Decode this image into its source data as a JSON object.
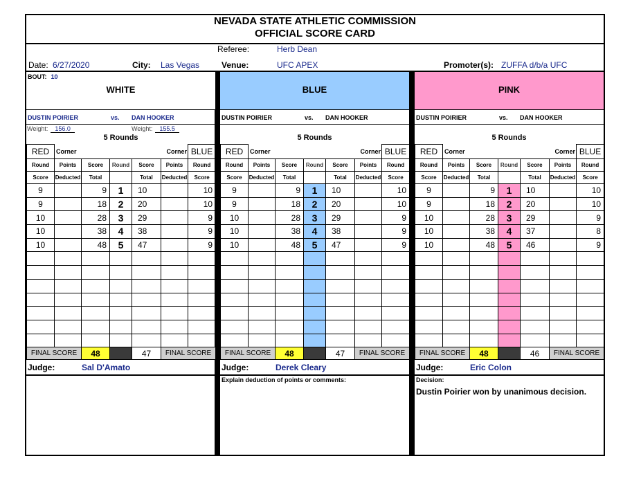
{
  "header": {
    "line1": "NEVADA STATE ATHLETIC COMMISSION",
    "line2": "OFFICIAL SCORE CARD"
  },
  "event": {
    "referee_label": "Referee:",
    "referee": "Herb Dean",
    "date_label": "Date:",
    "date": "6/27/2020",
    "city_label": "City:",
    "city": "Las Vegas",
    "venue_label": "Venue:",
    "venue": "UFC APEX",
    "promoter_label": "Promoter(s):",
    "promoter": "ZUFFA d/b/a UFC"
  },
  "bout": {
    "label": "BOUT:",
    "number": "10"
  },
  "labels": {
    "vs": "vs.",
    "weight": "Weight:",
    "rounds": "5 Rounds",
    "red": "RED",
    "blue": "BLUE",
    "corner": "Corner",
    "round": "Round",
    "score": "Score",
    "points": "Points",
    "deducted": "Deducted",
    "total": "Total",
    "final_score": "FINAL SCORE",
    "judge": "Judge:"
  },
  "fighters": {
    "red": "DUSTIN POIRIER",
    "blue": "DAN HOOKER",
    "red_weight": "156.0",
    "blue_weight": "155.5"
  },
  "colors": {
    "white": "#ffffff",
    "blue": "#99ccff",
    "pink": "#ff99cc",
    "final_highlight": "#ffff33",
    "name_text": "#1a2a8c"
  },
  "panels": [
    {
      "color_name": "WHITE",
      "color": "#ffffff",
      "judge": "Sal D'Amato",
      "red_final": "48",
      "blue_final": "47",
      "rounds": [
        {
          "r": "1",
          "rs": "9",
          "rt": "9",
          "bt": "10",
          "bs": "10"
        },
        {
          "r": "2",
          "rs": "9",
          "rt": "18",
          "bt": "20",
          "bs": "10"
        },
        {
          "r": "3",
          "rs": "10",
          "rt": "28",
          "bt": "29",
          "bs": "9"
        },
        {
          "r": "4",
          "rs": "10",
          "rt": "38",
          "bt": "38",
          "bs": "9"
        },
        {
          "r": "5",
          "rs": "10",
          "rt": "48",
          "bt": "47",
          "bs": "9"
        }
      ]
    },
    {
      "color_name": "BLUE",
      "color": "#99ccff",
      "judge": "Derek Cleary",
      "red_final": "48",
      "blue_final": "47",
      "comment_label": "Explain deduction of points or comments:",
      "rounds": [
        {
          "r": "1",
          "rs": "9",
          "rt": "9",
          "bt": "10",
          "bs": "10"
        },
        {
          "r": "2",
          "rs": "9",
          "rt": "18",
          "bt": "20",
          "bs": "10"
        },
        {
          "r": "3",
          "rs": "10",
          "rt": "28",
          "bt": "29",
          "bs": "9"
        },
        {
          "r": "4",
          "rs": "10",
          "rt": "38",
          "bt": "38",
          "bs": "9"
        },
        {
          "r": "5",
          "rs": "10",
          "rt": "48",
          "bt": "47",
          "bs": "9"
        }
      ]
    },
    {
      "color_name": "PINK",
      "color": "#ff99cc",
      "judge": "Eric Colon",
      "red_final": "48",
      "blue_final": "46",
      "comment_label": "Decision:",
      "decision": "Dustin Poirier won by unanimous decision.",
      "rounds": [
        {
          "r": "1",
          "rs": "9",
          "rt": "9",
          "bt": "10",
          "bs": "10"
        },
        {
          "r": "2",
          "rs": "9",
          "rt": "18",
          "bt": "20",
          "bs": "10"
        },
        {
          "r": "3",
          "rs": "10",
          "rt": "28",
          "bt": "29",
          "bs": "9"
        },
        {
          "r": "4",
          "rs": "10",
          "rt": "38",
          "bt": "37",
          "bs": "8"
        },
        {
          "r": "5",
          "rs": "10",
          "rt": "48",
          "bt": "46",
          "bs": "9"
        }
      ]
    }
  ]
}
